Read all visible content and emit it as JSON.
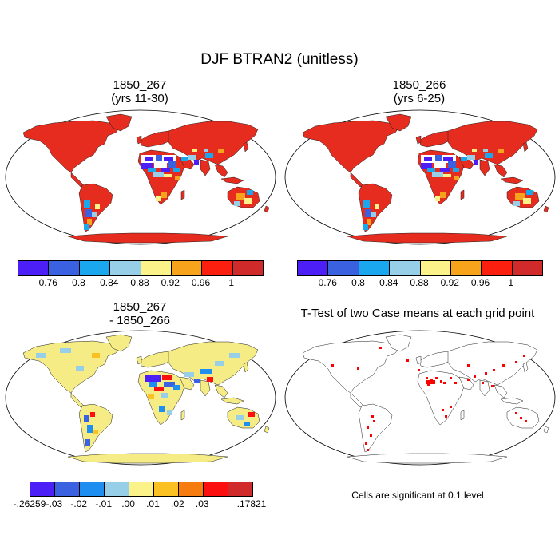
{
  "title": "DJF BTRAN2 (unitless)",
  "panels": {
    "case1": {
      "title_line1": "1850_267",
      "title_line2": "(yrs 11-30)"
    },
    "case2": {
      "title_line1": "1850_266",
      "title_line2": "(yrs 6-25)"
    },
    "diff": {
      "title_line1": "1850_267",
      "title_line2": "- 1850_266"
    },
    "ttest": {
      "title": "T-Test of two Case means at each grid point",
      "note": "Cells are significant at 0.1 level"
    }
  },
  "colorbar_main": {
    "colors": [
      "#4b1ff5",
      "#3a62e0",
      "#1aa7ee",
      "#97cfe8",
      "#fbf38a",
      "#f7a41c",
      "#fb1f0f",
      "#d12a2a"
    ],
    "labels": [
      "0.76",
      "0.8",
      "0.84",
      "0.88",
      "0.92",
      "0.96",
      "1"
    ]
  },
  "colorbar_diff": {
    "colors": [
      "#4b1ff5",
      "#3a62e0",
      "#1e8ef0",
      "#97cfe8",
      "#fbf38a",
      "#fbc021",
      "#f67c10",
      "#fb0f0f",
      "#d12a2a"
    ],
    "labels": [
      "-.26259",
      "-.03",
      "-.02",
      "-.01",
      ".00",
      ".01",
      ".02",
      ".03",
      ".17821"
    ]
  },
  "colors": {
    "land_main": "#e52c1f",
    "land_diff": "#f5ec86",
    "dry": "#ffffff",
    "signif": "#ff0000"
  }
}
